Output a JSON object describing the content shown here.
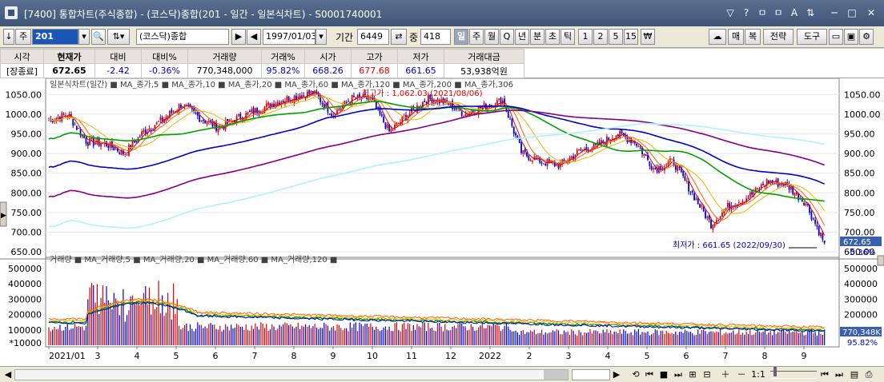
{
  "window": {
    "title": "[7400] 통합차트(주식종합) - (코스닥)종합(201 - 일간 - 일본식차트) - S0001740001",
    "buttons": [
      "▽",
      "?",
      "ㅁ",
      "ㅁ",
      "A",
      "⇅",
      "─",
      "□",
      "✕"
    ]
  },
  "toolbar": {
    "code_prefix": "주",
    "code": "201",
    "market_name": "(코스닥)종합",
    "date": "1997/01/03",
    "period_label": "기간",
    "period_value": "6449",
    "zoom_label": "중",
    "zoom_value": "418",
    "timeframes": [
      "일",
      "주",
      "월",
      "Q",
      "년",
      "분",
      "초",
      "틱",
      "1",
      "2",
      "5",
      "15",
      "₩"
    ],
    "selected_timeframe": "일",
    "right_buttons": [
      "매",
      "복",
      "전략",
      "도구"
    ]
  },
  "quote": {
    "headers": [
      "시각",
      "현재가",
      "대비",
      "대비%",
      "거래량",
      "거래%",
      "시가",
      "고가",
      "저가",
      "거래대금"
    ],
    "values": [
      "[장종료]",
      "672.65",
      "-2.42",
      "-0.36%",
      "770,348,000",
      "95.82%",
      "668.26",
      "677.68",
      "661.65",
      "53,938억원"
    ]
  },
  "chart_data": [
    {
      "type": "candlestick",
      "legend": "일본식차트(일간) ■ MA_종가,5 ■ MA_종가,10 ■ MA_종가,20 ■ MA_종가,60 ■ MA_종가,120 ■ MA_종가,200 ■ MA_종가,306",
      "series_colors": {
        "up": "#e00000",
        "down": "#0000d8",
        "ma5": "#e00000",
        "ma10": "#ff6000",
        "ma20": "#f0b400",
        "ma60": "#00a000",
        "ma120": "#0000c8",
        "ma200": "#800080",
        "ma306": "#b0f0ff"
      },
      "ylim": [
        640,
        1075
      ],
      "yticks": [
        "1050.00",
        "1000.00",
        "950.00",
        "900.00",
        "850.00",
        "800.00",
        "750.00",
        "700.00",
        "650.00"
      ],
      "last_price_label": "672.65",
      "last_change_label": "-0.36%",
      "high_annotation": "최고가 : 1,062.03 (2021/08/06)",
      "low_annotation": "최저가 : 661.65 (2022/09/30)",
      "anchor_closes": [
        [
          "2021-01",
          985
        ],
        [
          "2021-01",
          1000
        ],
        [
          "2021-02",
          930
        ],
        [
          "2021-02",
          925
        ],
        [
          "2021-03",
          900
        ],
        [
          "2021-03",
          955
        ],
        [
          "2021-04",
          985
        ],
        [
          "2021-04",
          1025
        ],
        [
          "2021-05",
          990
        ],
        [
          "2021-05",
          965
        ],
        [
          "2021-06",
          990
        ],
        [
          "2021-06",
          1010
        ],
        [
          "2021-07",
          1030
        ],
        [
          "2021-07",
          1045
        ],
        [
          "2021-08",
          1055
        ],
        [
          "2021-08",
          1000
        ],
        [
          "2021-09",
          1040
        ],
        [
          "2021-09",
          1040
        ],
        [
          "2021-10",
          955
        ],
        [
          "2021-10",
          1000
        ],
        [
          "2021-11",
          1040
        ],
        [
          "2021-11",
          1030
        ],
        [
          "2021-12",
          1000
        ],
        [
          "2021-12",
          1020
        ],
        [
          "2022-01",
          1035
        ],
        [
          "2022-01",
          900
        ],
        [
          "2022-02",
          880
        ],
        [
          "2022-02",
          870
        ],
        [
          "2022-03",
          905
        ],
        [
          "2022-03",
          920
        ],
        [
          "2022-04",
          950
        ],
        [
          "2022-04",
          930
        ],
        [
          "2022-05",
          860
        ],
        [
          "2022-05",
          880
        ],
        [
          "2022-06",
          800
        ],
        [
          "2022-06",
          720
        ],
        [
          "2022-07",
          770
        ],
        [
          "2022-07",
          790
        ],
        [
          "2022-08",
          830
        ],
        [
          "2022-08",
          820
        ],
        [
          "2022-09",
          775
        ],
        [
          "2022-09",
          672.65
        ]
      ]
    },
    {
      "type": "bar",
      "legend": "거래량 ■ MA_거래량,5 ■ MA_거래량,20 ■ MA_거래량,60 ■ MA_거래량,120 ■",
      "ylim": [
        0,
        530000
      ],
      "yticks": [
        "500000",
        "400000",
        "300000",
        "200000",
        "100000"
      ],
      "unit_label": "*10000",
      "last_volume_label": "770,348K",
      "last_volume_pct": "95.82%"
    }
  ],
  "x_axis": {
    "labels": [
      "2021/01",
      "3",
      "4",
      "5",
      "6",
      "7",
      "8",
      "9",
      "10",
      "11",
      "12",
      "2022",
      "2",
      "3",
      "4",
      "5",
      "6",
      "7",
      "8",
      "9"
    ]
  },
  "bottom": {
    "zoom_text": "1:1"
  }
}
